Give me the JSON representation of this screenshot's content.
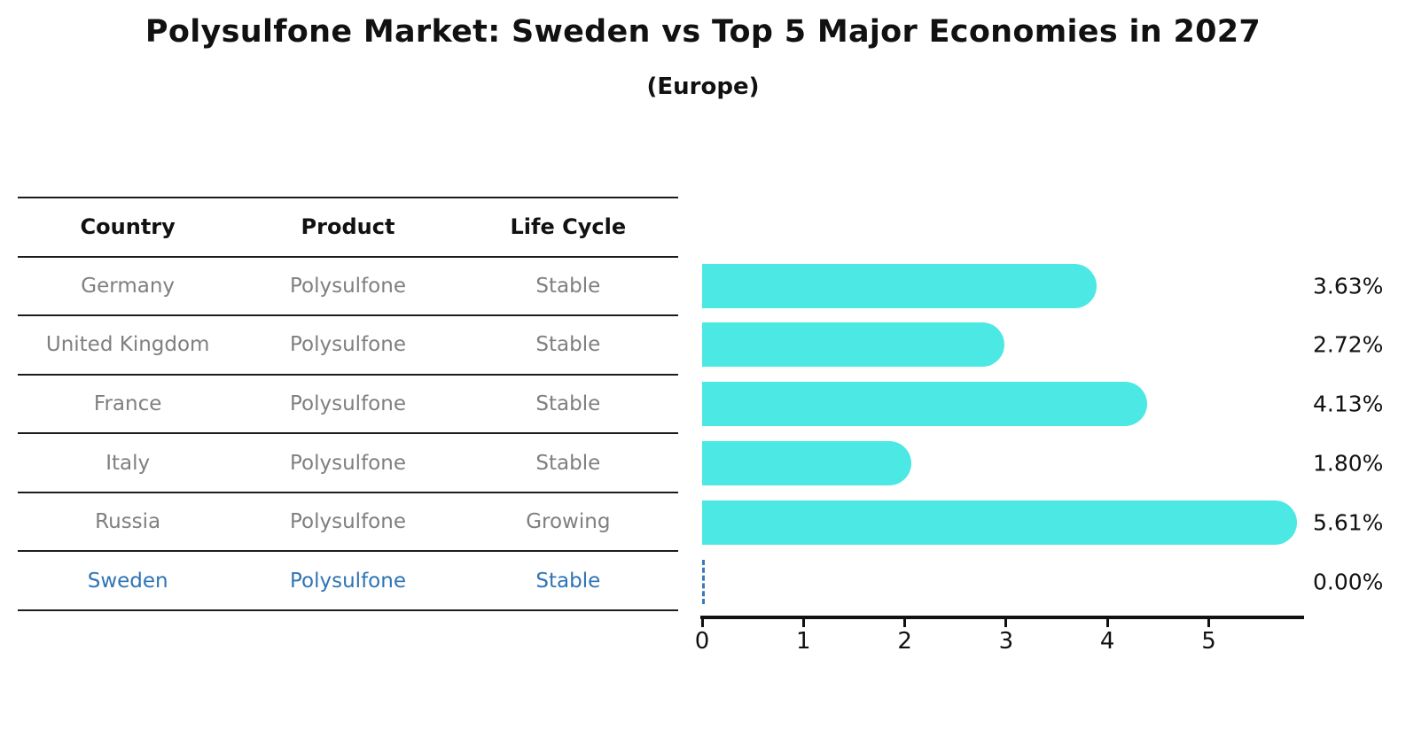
{
  "title": "Polysulfone Market: Sweden vs Top 5 Major Economies in 2027",
  "subtitle": "(Europe)",
  "table": {
    "headers": [
      "Country",
      "Product",
      "Life Cycle"
    ],
    "rows": [
      {
        "country": "Germany",
        "product": "Polysulfone",
        "life_cycle": "Stable",
        "highlight": false
      },
      {
        "country": "United Kingdom",
        "product": "Polysulfone",
        "life_cycle": "Stable",
        "highlight": false
      },
      {
        "country": "France",
        "product": "Polysulfone",
        "life_cycle": "Stable",
        "highlight": false
      },
      {
        "country": "Italy",
        "product": "Polysulfone",
        "life_cycle": "Stable",
        "highlight": false
      },
      {
        "country": "Russia",
        "product": "Polysulfone",
        "life_cycle": "Growing",
        "highlight": false
      },
      {
        "country": "Sweden",
        "product": "Polysulfone",
        "life_cycle": "Stable",
        "highlight": true
      }
    ]
  },
  "chart_data": {
    "type": "bar",
    "orientation": "horizontal",
    "title": "Polysulfone Market: Sweden vs Top 5 Major Economies in 2027",
    "subtitle": "(Europe)",
    "categories": [
      "Germany",
      "United Kingdom",
      "France",
      "Italy",
      "Russia",
      "Sweden"
    ],
    "values": [
      3.63,
      2.72,
      4.13,
      1.8,
      5.61,
      0.0
    ],
    "value_labels": [
      "3.63%",
      "2.72%",
      "4.13%",
      "1.80%",
      "5.61%",
      "0.00%"
    ],
    "x_ticks": [
      "0",
      "1",
      "2",
      "3",
      "4",
      "5"
    ],
    "xlim": [
      0,
      5.93
    ],
    "grid": false,
    "legend": false,
    "bar_color": "#4BE8E4",
    "zero_marker": "dashed-vertical-line",
    "highlight_category": "Sweden"
  },
  "colors": {
    "bar": "#4BE8E4",
    "highlight_text": "#2E74B5",
    "row_text": "#7F7F7F",
    "header_text": "#111111",
    "table_line": "#1C1C1C",
    "axis": "#111111",
    "zero_dash": "#3B7AB8"
  }
}
